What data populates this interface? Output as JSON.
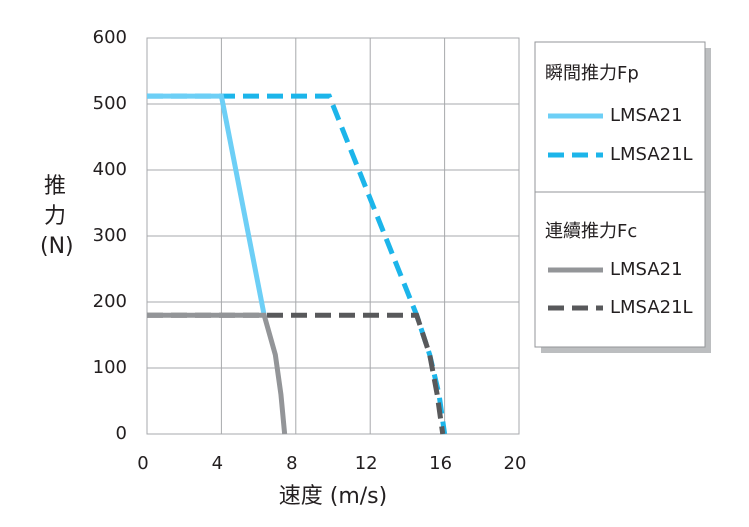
{
  "chart_data": {
    "type": "line",
    "x_label": "速度 (m/s)",
    "y_label": "推力(N)",
    "xlim": [
      0,
      20
    ],
    "xticks": [
      0,
      4,
      8,
      12,
      16,
      20
    ],
    "ylim": [
      0,
      600
    ],
    "yticks": [
      0,
      100,
      200,
      300,
      400,
      500,
      600
    ],
    "grid": true,
    "legend": "right",
    "groups": [
      {
        "name": "瞬間推力Fp",
        "series": [
          {
            "name": "LMSA21",
            "color": "#6dcff6",
            "dash": false,
            "x": [
              0,
              4,
              6.3
            ],
            "values": [
              512,
              512,
              180
            ]
          },
          {
            "name": "LMSA21L",
            "color": "#1cb5ea",
            "dash": true,
            "x": [
              0,
              9.8,
              14.5,
              15.2,
              15.7,
              16
            ],
            "values": [
              512,
              512,
              180,
              120,
              60,
              0
            ]
          }
        ]
      },
      {
        "name": "連續推力Fc",
        "series": [
          {
            "name": "LMSA21",
            "color": "#939598",
            "dash": false,
            "x": [
              0,
              6.3,
              6.9,
              7.2,
              7.4
            ],
            "values": [
              180,
              180,
              120,
              60,
              0
            ]
          },
          {
            "name": "LMSA21L",
            "color": "#58595b",
            "dash": true,
            "x": [
              0,
              14.5,
              15.2,
              15.6,
              15.9
            ],
            "values": [
              180,
              180,
              120,
              60,
              0
            ]
          }
        ]
      }
    ]
  }
}
